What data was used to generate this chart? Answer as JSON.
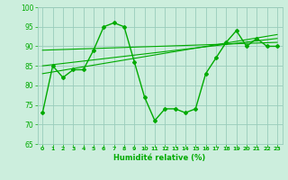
{
  "xlabel": "Humidité relative (%)",
  "xlim": [
    -0.5,
    23.5
  ],
  "ylim": [
    65,
    100
  ],
  "yticks": [
    65,
    70,
    75,
    80,
    85,
    90,
    95,
    100
  ],
  "background_color": "#cceedd",
  "grid_color": "#99ccbb",
  "line_color": "#00aa00",
  "main_curve_x": [
    0,
    1,
    2,
    3,
    4,
    5,
    6,
    7,
    8,
    9,
    10,
    11,
    12,
    13,
    14,
    15,
    16,
    17,
    18,
    19,
    20,
    21,
    22,
    23
  ],
  "main_curve_y": [
    73,
    85,
    82,
    84,
    84,
    89,
    95,
    96,
    95,
    86,
    77,
    71,
    74,
    74,
    73,
    74,
    83,
    87,
    91,
    94,
    90,
    92,
    90,
    90
  ],
  "trend_line1_x": [
    0,
    23
  ],
  "trend_line1_y": [
    89,
    91
  ],
  "trend_line2_x": [
    0,
    23
  ],
  "trend_line2_y": [
    85,
    92
  ],
  "trend_line3_x": [
    0,
    23
  ],
  "trend_line3_y": [
    83,
    93
  ]
}
